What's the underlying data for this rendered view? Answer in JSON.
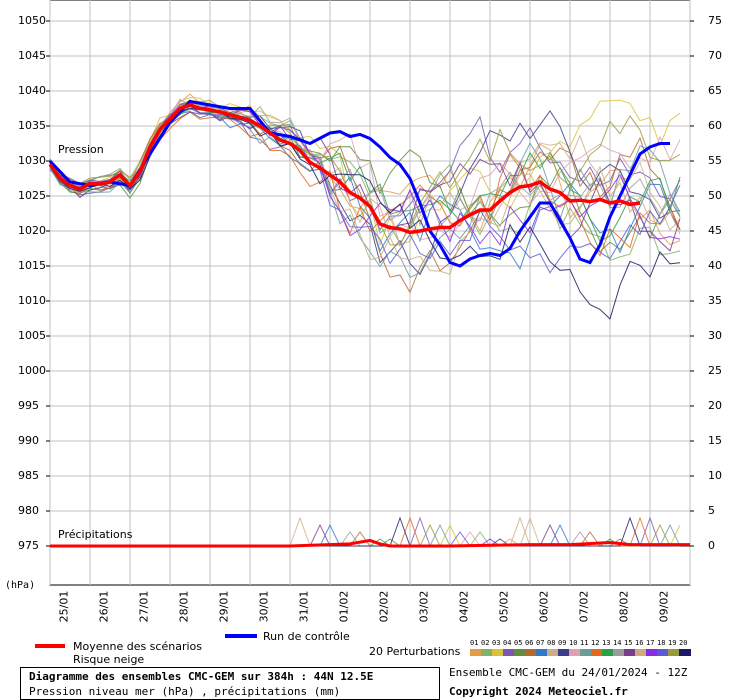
{
  "chart_data": {
    "type": "line",
    "panel_labels": {
      "pressure": "Pression",
      "precip": "Précipitations"
    },
    "y_unit": "(hPa)",
    "y_left": {
      "min": 975,
      "max": 1050,
      "step": 5
    },
    "y_right": {
      "min": 0,
      "max": 75,
      "step": 5
    },
    "x_labels": [
      "25/01",
      "26/01",
      "27/01",
      "28/01",
      "29/01",
      "30/01",
      "31/01",
      "01/02",
      "02/02",
      "03/02",
      "04/02",
      "05/02",
      "06/02",
      "07/02",
      "08/02",
      "09/02"
    ],
    "x_range": [
      0,
      16
    ],
    "grid": true,
    "series": [
      {
        "name": "Moyenne des scénarios",
        "color": "#ff0000",
        "pressure": [
          [
            0,
            1029.5
          ],
          [
            0.25,
            1027.5
          ],
          [
            0.5,
            1026.5
          ],
          [
            0.75,
            1026
          ],
          [
            1,
            1026.8
          ],
          [
            1.25,
            1026.7
          ],
          [
            1.5,
            1027
          ],
          [
            1.75,
            1028
          ],
          [
            2,
            1026.5
          ],
          [
            2.25,
            1028.5
          ],
          [
            2.5,
            1032
          ],
          [
            2.75,
            1034.5
          ],
          [
            3,
            1036
          ],
          [
            3.25,
            1037.5
          ],
          [
            3.5,
            1038
          ],
          [
            3.75,
            1037.5
          ],
          [
            4,
            1037.3
          ],
          [
            4.25,
            1037
          ],
          [
            4.5,
            1036.6
          ],
          [
            4.75,
            1036.2
          ],
          [
            5,
            1035.8
          ],
          [
            5.25,
            1035
          ],
          [
            5.5,
            1034
          ],
          [
            5.75,
            1033
          ],
          [
            6,
            1032.5
          ],
          [
            6.25,
            1031.5
          ],
          [
            6.5,
            1029.8
          ],
          [
            6.75,
            1029
          ],
          [
            7,
            1028
          ],
          [
            7.25,
            1027
          ],
          [
            7.5,
            1025.5
          ],
          [
            7.75,
            1024.7
          ],
          [
            8,
            1023.5
          ],
          [
            8.25,
            1021
          ],
          [
            8.5,
            1020.5
          ],
          [
            8.75,
            1020.3
          ],
          [
            9,
            1019.8
          ],
          [
            9.25,
            1020
          ],
          [
            9.5,
            1020.3
          ],
          [
            9.75,
            1020.5
          ],
          [
            10,
            1020.5
          ],
          [
            10.25,
            1021.5
          ],
          [
            10.5,
            1022.3
          ],
          [
            10.75,
            1023
          ],
          [
            11,
            1023
          ],
          [
            11.25,
            1024.3
          ],
          [
            11.5,
            1025.5
          ],
          [
            11.75,
            1026.3
          ],
          [
            12,
            1026.5
          ],
          [
            12.25,
            1027
          ],
          [
            12.5,
            1026
          ],
          [
            12.75,
            1025.5
          ],
          [
            13,
            1024.3
          ],
          [
            13.25,
            1024.4
          ],
          [
            13.5,
            1024.2
          ],
          [
            13.75,
            1024.5
          ],
          [
            14,
            1024
          ],
          [
            14.25,
            1024.3
          ],
          [
            14.5,
            1023.8
          ],
          [
            14.75,
            1024
          ]
        ],
        "precip": [
          [
            0,
            0
          ],
          [
            6,
            0
          ],
          [
            7.5,
            0.3
          ],
          [
            8,
            0.8
          ],
          [
            8.25,
            0.3
          ],
          [
            8.5,
            0
          ],
          [
            10,
            0
          ],
          [
            11,
            0.1
          ],
          [
            12,
            0.2
          ],
          [
            13,
            0.2
          ],
          [
            14,
            0.5
          ],
          [
            14.5,
            0.2
          ],
          [
            15,
            0.2
          ],
          [
            16,
            0.2
          ]
        ]
      },
      {
        "name": "Run de contrôle",
        "color": "#0000ff",
        "pressure": [
          [
            0,
            1030
          ],
          [
            0.5,
            1027
          ],
          [
            1,
            1026.5
          ],
          [
            1.5,
            1027
          ],
          [
            2,
            1026.5
          ],
          [
            2.5,
            1031
          ],
          [
            3,
            1035.5
          ],
          [
            3.5,
            1038.5
          ],
          [
            4,
            1038
          ],
          [
            4.5,
            1037.5
          ],
          [
            5,
            1037.5
          ],
          [
            5.5,
            1034
          ],
          [
            6,
            1033.5
          ],
          [
            6.5,
            1032.5
          ],
          [
            7,
            1034
          ],
          [
            7.25,
            1034.2
          ],
          [
            7.5,
            1033.5
          ],
          [
            7.75,
            1033.8
          ],
          [
            8,
            1033.2
          ],
          [
            8.25,
            1032
          ],
          [
            8.5,
            1030.5
          ],
          [
            8.75,
            1029.5
          ],
          [
            9,
            1027.5
          ],
          [
            9.25,
            1024
          ],
          [
            9.5,
            1020
          ],
          [
            9.75,
            1018
          ],
          [
            10,
            1015.5
          ],
          [
            10.25,
            1015
          ],
          [
            10.5,
            1016
          ],
          [
            10.75,
            1016.5
          ],
          [
            11,
            1016.8
          ],
          [
            11.25,
            1016.5
          ],
          [
            11.5,
            1017.5
          ],
          [
            11.75,
            1020
          ],
          [
            12,
            1022
          ],
          [
            12.25,
            1024
          ],
          [
            12.5,
            1024
          ],
          [
            12.75,
            1021.5
          ],
          [
            13,
            1019
          ],
          [
            13.25,
            1016
          ],
          [
            13.5,
            1015.5
          ],
          [
            13.75,
            1018
          ],
          [
            14,
            1022
          ],
          [
            14.25,
            1025
          ],
          [
            14.5,
            1028
          ],
          [
            14.75,
            1031
          ],
          [
            15,
            1032
          ],
          [
            15.25,
            1032.5
          ],
          [
            15.5,
            1032.5
          ]
        ],
        "precip": [
          [
            0,
            0
          ],
          [
            16,
            0
          ]
        ]
      },
      {
        "name": "Risque neige",
        "color": "#ff00ff",
        "pressure": [],
        "precip": []
      }
    ],
    "perturbations": {
      "label": "20 Perturbations",
      "ids": [
        "01",
        "02",
        "03",
        "04",
        "05",
        "06",
        "07",
        "08",
        "09",
        "10",
        "11",
        "12",
        "13",
        "14",
        "15",
        "16",
        "17",
        "18",
        "19",
        "20"
      ],
      "colors": [
        "#e69a4a",
        "#7fb36a",
        "#d9c23a",
        "#7a57b5",
        "#5e8e3e",
        "#b9672f",
        "#2e79c9",
        "#c9b08a",
        "#3c3c8c",
        "#e0a0b0",
        "#6a9c9c",
        "#e06a1c",
        "#2d9e4a",
        "#9c9c9c",
        "#7a3c8c",
        "#c9ad7a",
        "#8a2be2",
        "#5a5ad4",
        "#9a9a3c",
        "#1a1a66"
      ]
    }
  },
  "title_box": {
    "line1": "Diagramme des ensembles CMC-GEM sur 384h : 44N 12.5E",
    "line2": "Pression niveau mer (hPa) , précipitations (mm)"
  },
  "ensemble_line": "Ensemble CMC-GEM du 24/01/2024 - 12Z",
  "copyright": "Copyright 2024 Meteociel.fr"
}
